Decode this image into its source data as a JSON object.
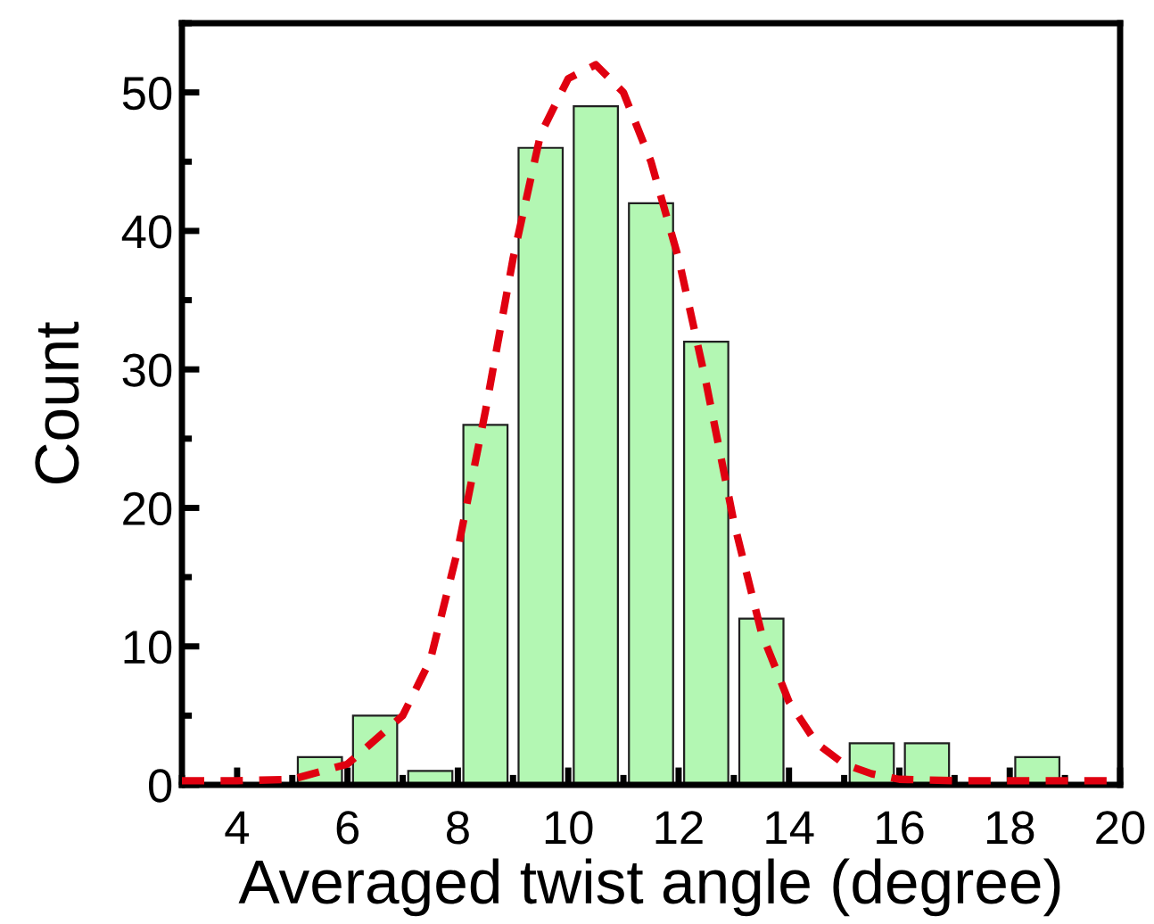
{
  "chart_data": {
    "type": "histogram",
    "xlabel": "Averaged twist angle (degree)",
    "ylabel": "Count",
    "bins": [
      5,
      6,
      7,
      8,
      9,
      10,
      11,
      12,
      13,
      14,
      15,
      16,
      17,
      18,
      19
    ],
    "values": [
      2,
      5,
      1,
      26,
      46,
      49,
      42,
      32,
      12,
      0,
      3,
      3,
      0,
      2
    ],
    "color": "#b3f7b3",
    "series": [
      {
        "type": "line",
        "color": "#e00010",
        "line_style": "dashed",
        "x": [
          3,
          4,
          5,
          6,
          7,
          7.5,
          8,
          8.5,
          9,
          9.5,
          10,
          10.5,
          11,
          11.5,
          12,
          12.5,
          13,
          13.5,
          14,
          14.5,
          15,
          15.5,
          16,
          17,
          18,
          19,
          20
        ],
        "values": [
          0.3,
          0.3,
          0.4,
          1.5,
          5,
          9,
          17,
          27,
          38,
          47,
          51,
          52,
          50,
          45,
          38,
          29,
          19,
          11,
          6,
          3,
          1.5,
          0.8,
          0.4,
          0.3,
          0.3,
          0.3,
          0.3
        ]
      }
    ],
    "xlim": [
      3,
      20
    ],
    "xticks": [
      4,
      6,
      8,
      10,
      12,
      14,
      16,
      18,
      20
    ],
    "ylim": [
      0,
      55
    ],
    "yticks": [
      0,
      10,
      20,
      30,
      40,
      50
    ]
  }
}
